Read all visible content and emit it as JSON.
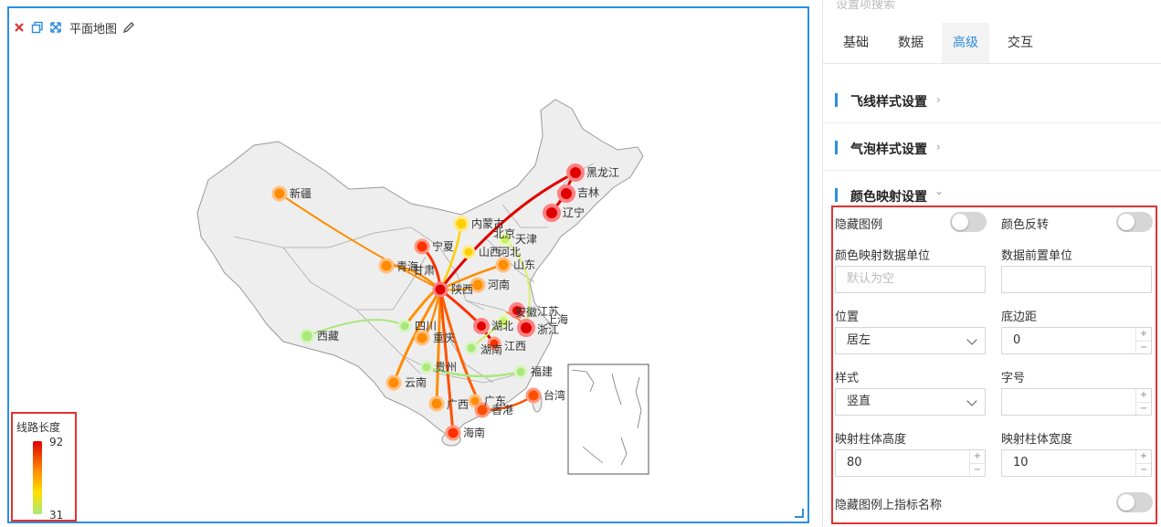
{
  "canvas": {
    "title": "平面地图",
    "legend": {
      "title": "线路长度",
      "max": "92",
      "min": "31"
    }
  },
  "map": {
    "provinces": {
      "xinjiang": "新疆",
      "xizang": "西藏",
      "qinghai": "青海",
      "gansu": "甘肃",
      "neimenggu": "内蒙古",
      "ningxia": "宁夏",
      "shaanxi": "陕西",
      "shanxi": "山西",
      "heilongjiang": "黑龙江",
      "jilin": "吉林",
      "liaoning": "辽宁",
      "beijing": "北京",
      "tianjin": "天津",
      "hebei": "河北",
      "shandong": "山东",
      "henan": "河南",
      "sichuan": "四川",
      "chongqing": "重庆",
      "hubei": "湖北",
      "anhui": "安徽",
      "jiangsu": "江苏",
      "shanghai": "上海",
      "zhejiang": "浙江",
      "hunan": "湖南",
      "jiangxi": "江西",
      "yunnan": "云南",
      "guizhou": "贵州",
      "guangxi": "广西",
      "guangdong": "广东",
      "fujian": "福建",
      "taiwan": "台湾",
      "hongkong": "香港",
      "hainan": "海南"
    }
  },
  "settings": {
    "search_placeholder": "设置项搜索",
    "tabs": [
      "基础",
      "数据",
      "高级",
      "交互"
    ],
    "active_tab": "高级",
    "sections": {
      "flyline": "飞线样式设置",
      "bubble": "气泡样式设置",
      "colormap": "颜色映射设置"
    },
    "colormap": {
      "hide_legend": "隐藏图例",
      "reverse_color": "颜色反转",
      "data_unit": "颜色映射数据单位",
      "data_unit_placeholder": "默认为空",
      "prefix_unit": "数据前置单位",
      "position": "位置",
      "position_value": "居左",
      "bottom_margin": "底边距",
      "bottom_margin_value": "0",
      "style": "样式",
      "style_value": "竖直",
      "font_size": "字号",
      "bar_height": "映射柱体高度",
      "bar_height_value": "80",
      "bar_width": "映射柱体宽度",
      "bar_width_value": "10",
      "hide_indicator_name": "隐藏图例上指标名称"
    },
    "accent_color": "#2d8ee0",
    "highlight_color": "#e23232"
  }
}
